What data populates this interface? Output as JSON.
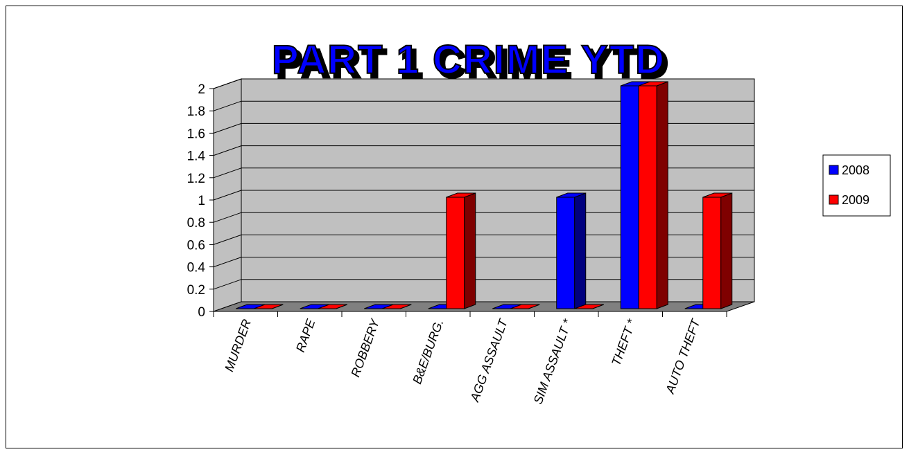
{
  "chart_data": {
    "type": "bar",
    "title": "PART 1 CRIME YTD",
    "categories": [
      "MURDER",
      "RAPE",
      "ROBBERY",
      "B&E/BURG.",
      "AGG ASSAULT",
      "SIM ASSAULT *",
      "THEFT *",
      "AUTO THEFT"
    ],
    "series": [
      {
        "name": "2008",
        "values": [
          0,
          0,
          0,
          0,
          0,
          1,
          2,
          0
        ],
        "color": "#0000ff",
        "side_color": "#00007f"
      },
      {
        "name": "2009",
        "values": [
          0,
          0,
          0,
          1,
          0,
          0,
          2,
          1
        ],
        "color": "#ff0000",
        "side_color": "#7f0000"
      }
    ],
    "yticks": [
      "0",
      "0.2",
      "0.4",
      "0.6",
      "0.8",
      "1",
      "1.2",
      "1.4",
      "1.6",
      "1.8",
      "2"
    ],
    "ylim": [
      0,
      2
    ],
    "grid": true,
    "legend_position": "right",
    "background_color": "#c0c0c0",
    "floor_color": "#808080"
  }
}
